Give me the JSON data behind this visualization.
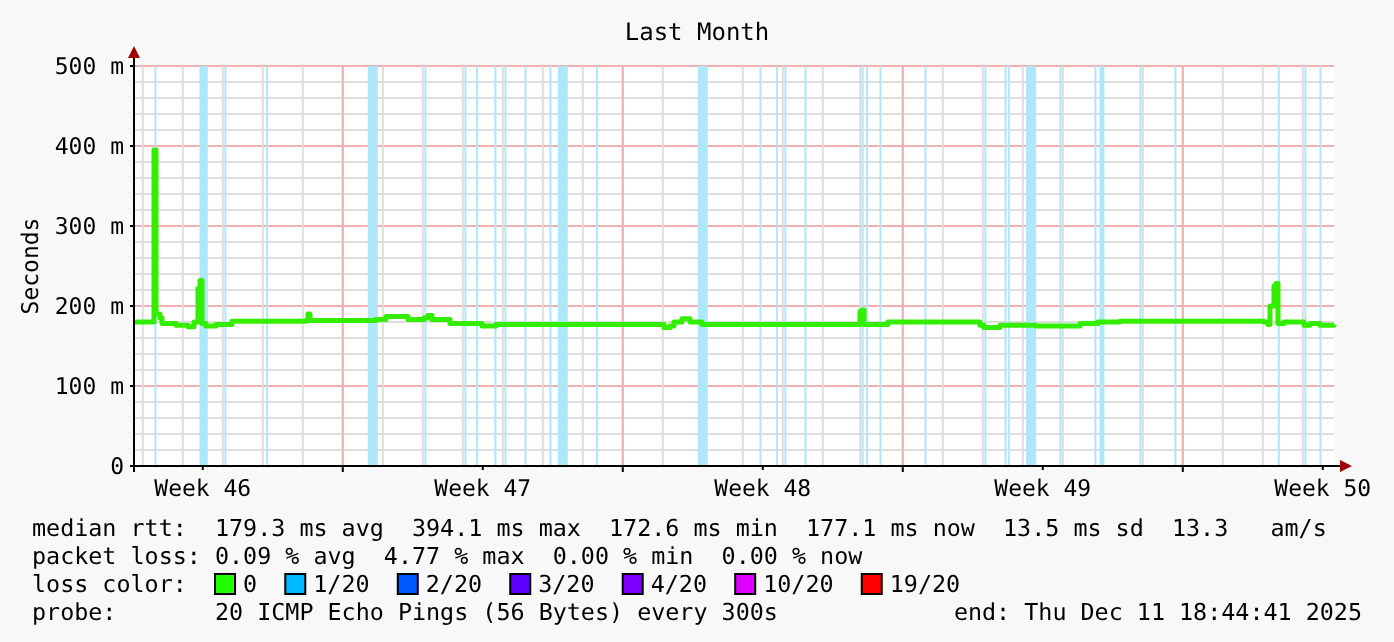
{
  "chart_data": {
    "type": "line",
    "title": "Last Month",
    "ylabel": "Seconds",
    "xlim": [
      "2025-11-11T18:44",
      "2025-12-11T18:44"
    ],
    "xticks": [
      {
        "value": "2025-11-13T12:00",
        "label": "Week 46"
      },
      {
        "value": "2025-11-20T12:00",
        "label": "Week 47"
      },
      {
        "value": "2025-11-27T12:00",
        "label": "Week 48"
      },
      {
        "value": "2025-12-04T12:00",
        "label": "Week 49"
      },
      {
        "value": "2025-12-11T12:00",
        "label": "Week 50"
      },
      {
        "value": "2025-11-17T00:00",
        "label": null
      },
      {
        "value": "2025-11-24T00:00",
        "label": null
      },
      {
        "value": "2025-12-01T00:00",
        "label": null
      },
      {
        "value": "2025-12-08T00:00",
        "label": null
      }
    ],
    "ylim": [
      0,
      500
    ],
    "yticks": [
      {
        "value": 0,
        "label": "0"
      },
      {
        "value": 100,
        "label": "100 m"
      },
      {
        "value": 200,
        "label": "200 m"
      },
      {
        "value": 300,
        "label": "300 m"
      },
      {
        "value": 400,
        "label": "400 m"
      },
      {
        "value": 500,
        "label": "500 m"
      },
      {
        "value": 20,
        "label": null
      },
      {
        "value": 40,
        "label": null
      },
      {
        "value": 60,
        "label": null
      },
      {
        "value": 80,
        "label": null
      },
      {
        "value": 120,
        "label": null
      },
      {
        "value": 140,
        "label": null
      },
      {
        "value": 160,
        "label": null
      },
      {
        "value": 180,
        "label": null
      },
      {
        "value": 220,
        "label": null
      },
      {
        "value": 240,
        "label": null
      },
      {
        "value": 260,
        "label": null
      },
      {
        "value": 280,
        "label": null
      },
      {
        "value": 320,
        "label": null
      },
      {
        "value": 340,
        "label": null
      },
      {
        "value": 360,
        "label": null
      },
      {
        "value": 380,
        "label": null
      },
      {
        "value": 420,
        "label": null
      },
      {
        "value": 440,
        "label": null
      },
      {
        "value": 460,
        "label": null
      },
      {
        "value": 480,
        "label": null
      }
    ],
    "grid": true,
    "series": [
      {
        "color": "#33ee00",
        "x": [
          "2025-11-11T18:44",
          "2025-11-12T05:32",
          "2025-11-12T06:44",
          "2025-11-12T07:56",
          "2025-11-12T10:20",
          "2025-11-12T11:32",
          "2025-11-12T19:56",
          "2025-11-13T03:08",
          "2025-11-13T06:44",
          "2025-11-13T09:08",
          "2025-11-13T10:20",
          "2025-11-13T11:32",
          "2025-11-13T13:56",
          "2025-11-13T19:56",
          "2025-11-14T05:32",
          "2025-11-16T01:56",
          "2025-11-16T03:08",
          "2025-11-16T04:20",
          "2025-11-17T19:56",
          "2025-11-18T01:56",
          "2025-11-18T13:56",
          "2025-11-18T15:08",
          "2025-11-19T00:44",
          "2025-11-19T03:08",
          "2025-11-19T05:32",
          "2025-11-19T16:20",
          "2025-11-20T11:32",
          "2025-11-20T18:44",
          "2025-11-20T19:56",
          "2025-11-23T04:20",
          "2025-11-24T22:20",
          "2025-11-25T00:44",
          "2025-11-25T04:20",
          "2025-11-25T06:44",
          "2025-11-25T11:32",
          "2025-11-25T16:20",
          "2025-11-25T23:32",
          "2025-11-28T10:20",
          "2025-11-29T21:08",
          "2025-11-29T22:20",
          "2025-11-29T23:32",
          "2025-11-30T00:44",
          "2025-11-30T15:08",
          "2025-12-01T12:44",
          "2025-12-02T22:20",
          "2025-12-03T00:44",
          "2025-12-03T07:56",
          "2025-12-03T10:20",
          "2025-12-04T07:56",
          "2025-12-05T10:20",
          "2025-12-05T21:08",
          "2025-12-06T10:20",
          "2025-12-10T00:44",
          "2025-12-10T03:08",
          "2025-12-10T04:20",
          "2025-12-10T06:44",
          "2025-12-10T07:56",
          "2025-12-10T09:08",
          "2025-12-10T12:44",
          "2025-12-11T00:44",
          "2025-12-11T04:20",
          "2025-12-11T10:20",
          "2025-12-11T18:44"
        ],
        "values": [
          180,
          180,
          395,
          190,
          185,
          178,
          176,
          174,
          180,
          222,
          232,
          178,
          175,
          177,
          181,
          182,
          190,
          182,
          183,
          187,
          187,
          183,
          185,
          188,
          183,
          178,
          175,
          175,
          177,
          177,
          177,
          173,
          175,
          180,
          184,
          180,
          177,
          177,
          177,
          193,
          195,
          177,
          180,
          180,
          176,
          173,
          173,
          176,
          175,
          178,
          180,
          181,
          180,
          177,
          200,
          225,
          228,
          178,
          180,
          176,
          178,
          176,
          177
        ]
      }
    ],
    "bands": [
      {
        "axis": "x",
        "from": "2025-11-12T07:00",
        "to": "2025-11-12T08:00",
        "color": "#aee6fa"
      },
      {
        "axis": "x",
        "from": "2025-11-13T10:00",
        "to": "2025-11-13T15:00",
        "color": "#aee6fa"
      },
      {
        "axis": "x",
        "from": "2025-11-14T01:00",
        "to": "2025-11-14T02:00",
        "color": "#aee6fa"
      },
      {
        "axis": "x",
        "from": "2025-11-15T02:00",
        "to": "2025-11-15T03:00",
        "color": "#aee6fa"
      },
      {
        "axis": "x",
        "from": "2025-11-17T15:00",
        "to": "2025-11-17T21:00",
        "color": "#aee6fa"
      },
      {
        "axis": "x",
        "from": "2025-11-19T01:00",
        "to": "2025-11-19T02:00",
        "color": "#aee6fa"
      },
      {
        "axis": "x",
        "from": "2025-11-20T01:00",
        "to": "2025-11-20T02:00",
        "color": "#aee6fa"
      },
      {
        "axis": "x",
        "from": "2025-11-20T08:00",
        "to": "2025-11-20T09:00",
        "color": "#aee6fa"
      },
      {
        "axis": "x",
        "from": "2025-11-20T19:00",
        "to": "2025-11-20T20:00",
        "color": "#aee6fa"
      },
      {
        "axis": "x",
        "from": "2025-11-21T01:00",
        "to": "2025-11-21T02:00",
        "color": "#aee6fa"
      },
      {
        "axis": "x",
        "from": "2025-11-21T13:00",
        "to": "2025-11-21T14:00",
        "color": "#aee6fa"
      },
      {
        "axis": "x",
        "from": "2025-11-22T04:00",
        "to": "2025-11-22T05:00",
        "color": "#aee6fa"
      },
      {
        "axis": "x",
        "from": "2025-11-22T09:00",
        "to": "2025-11-22T15:00",
        "color": "#aee6fa"
      },
      {
        "axis": "x",
        "from": "2025-11-23T08:00",
        "to": "2025-11-23T09:00",
        "color": "#aee6fa"
      },
      {
        "axis": "x",
        "from": "2025-11-25T21:00",
        "to": "2025-11-26T03:00",
        "color": "#aee6fa"
      },
      {
        "axis": "x",
        "from": "2025-11-27T10:00",
        "to": "2025-11-27T11:00",
        "color": "#aee6fa"
      },
      {
        "axis": "x",
        "from": "2025-11-27T20:00",
        "to": "2025-11-27T21:00",
        "color": "#aee6fa"
      },
      {
        "axis": "x",
        "from": "2025-11-28T01:00",
        "to": "2025-11-28T02:00",
        "color": "#aee6fa"
      },
      {
        "axis": "x",
        "from": "2025-11-28T13:00",
        "to": "2025-11-28T14:00",
        "color": "#aee6fa"
      },
      {
        "axis": "x",
        "from": "2025-11-29T22:00",
        "to": "2025-11-29T23:00",
        "color": "#aee6fa"
      },
      {
        "axis": "x",
        "from": "2025-11-30T02:00",
        "to": "2025-11-30T03:00",
        "color": "#aee6fa"
      },
      {
        "axis": "x",
        "from": "2025-11-30T10:00",
        "to": "2025-11-30T11:00",
        "color": "#aee6fa"
      },
      {
        "axis": "x",
        "from": "2025-12-01T13:00",
        "to": "2025-12-01T14:00",
        "color": "#aee6fa"
      },
      {
        "axis": "x",
        "from": "2025-12-03T01:00",
        "to": "2025-12-03T02:00",
        "color": "#aee6fa"
      },
      {
        "axis": "x",
        "from": "2025-12-03T13:00",
        "to": "2025-12-03T14:00",
        "color": "#aee6fa"
      },
      {
        "axis": "x",
        "from": "2025-12-03T15:00",
        "to": "2025-12-03T16:00",
        "color": "#aee6fa"
      },
      {
        "axis": "x",
        "from": "2025-12-04T02:00",
        "to": "2025-12-04T08:00",
        "color": "#aee6fa"
      },
      {
        "axis": "x",
        "from": "2025-12-04T22:00",
        "to": "2025-12-04T23:00",
        "color": "#aee6fa"
      },
      {
        "axis": "x",
        "from": "2025-12-05T19:00",
        "to": "2025-12-05T20:00",
        "color": "#aee6fa"
      },
      {
        "axis": "x",
        "from": "2025-12-05T22:00",
        "to": "2025-12-06T01:00",
        "color": "#aee6fa"
      },
      {
        "axis": "x",
        "from": "2025-12-06T22:00",
        "to": "2025-12-06T23:00",
        "color": "#aee6fa"
      },
      {
        "axis": "x",
        "from": "2025-12-07T19:00",
        "to": "2025-12-07T20:00",
        "color": "#aee6fa"
      },
      {
        "axis": "x",
        "from": "2025-12-10T09:00",
        "to": "2025-12-10T10:00",
        "color": "#aee6fa"
      },
      {
        "axis": "x",
        "from": "2025-12-11T01:00",
        "to": "2025-12-11T02:00",
        "color": "#aee6fa"
      },
      {
        "axis": "x",
        "from": "2025-12-11T10:00",
        "to": "2025-12-11T11:00",
        "color": "#aee6fa"
      }
    ],
    "annotations": [
      "median rtt:  179.3 ms avg  394.1 ms max  172.6 ms min  177.1 ms now  13.5 ms sd  13.3   am/s",
      "packet loss: 0.09 % avg  4.77 % max  0.00 % min  0.00 % now",
      "loss color:",
      "0",
      "1/20",
      "2/20",
      "3/20",
      "4/20",
      "10/20",
      "19/20",
      "probe:       20 ICMP Echo Pings (56 Bytes) every 300s",
      "end: Thu Dec 11 18:44:41 2025"
    ]
  }
}
